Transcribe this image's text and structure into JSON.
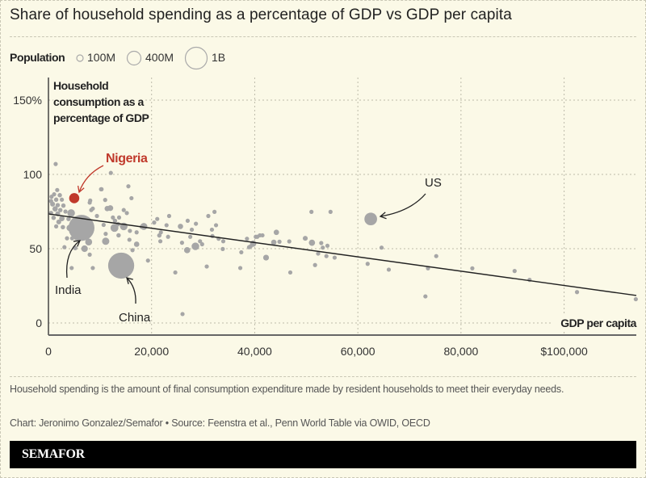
{
  "title": "Share of household spending as a percentage of GDP vs GDP per capita",
  "legend": {
    "label": "Population",
    "items": [
      {
        "label": "100M",
        "population_m": 100
      },
      {
        "label": "400M",
        "population_m": 400
      },
      {
        "label": "1B",
        "population_m": 1000
      }
    ]
  },
  "colors": {
    "background": "#fbf9e7",
    "point": "#a6a6a6",
    "highlight": "#c0392b",
    "text": "#222222",
    "trendline": "#222222"
  },
  "chart_data": {
    "type": "scatter",
    "title": "Share of household spending as a percentage of GDP vs GDP per capita",
    "xlabel": "GDP per capita",
    "ylabel": "Household consumption as a percentage of GDP",
    "xlim": [
      0,
      114000
    ],
    "ylim": [
      0,
      150
    ],
    "grid": true,
    "size_encoding": "population (millions)",
    "xticks": [
      {
        "value": 0,
        "label": "0"
      },
      {
        "value": 20000,
        "label": "20,000"
      },
      {
        "value": 40000,
        "label": "40,000"
      },
      {
        "value": 60000,
        "label": "60,000"
      },
      {
        "value": 80000,
        "label": "80,000"
      },
      {
        "value": 100000,
        "label": "$100,000"
      }
    ],
    "yticks": [
      {
        "value": 0,
        "label": "0"
      },
      {
        "value": 50,
        "label": "50"
      },
      {
        "value": 100,
        "label": "100"
      },
      {
        "value": 150,
        "label": "150%"
      }
    ],
    "point_fields": [
      "gdp_per_capita",
      "household_consumption_pct_gdp",
      "population_m"
    ],
    "points": [
      [
        1400,
        107,
        20
      ],
      [
        12100,
        101,
        20
      ],
      [
        10300,
        90,
        20
      ],
      [
        15500,
        92,
        20
      ],
      [
        16100,
        84,
        20
      ],
      [
        15000,
        151,
        20
      ],
      [
        1700,
        89.5,
        30
      ],
      [
        1100,
        86.6,
        30
      ],
      [
        2200,
        86,
        40
      ],
      [
        600,
        85,
        30
      ],
      [
        500,
        82,
        40
      ],
      [
        1500,
        83,
        40
      ],
      [
        2600,
        83,
        30
      ],
      [
        800,
        80,
        50
      ],
      [
        1800,
        79.3,
        40
      ],
      [
        2900,
        79,
        40
      ],
      [
        1300,
        76.8,
        60
      ],
      [
        2300,
        76,
        40
      ],
      [
        3300,
        75,
        30
      ],
      [
        500,
        74,
        40
      ],
      [
        1800,
        73.5,
        50
      ],
      [
        4400,
        74,
        120
      ],
      [
        8000,
        81,
        30
      ],
      [
        8300,
        76,
        30
      ],
      [
        1000,
        70.8,
        40
      ],
      [
        2600,
        70.3,
        60
      ],
      [
        3900,
        70,
        40
      ],
      [
        2000,
        68,
        50
      ],
      [
        1500,
        65,
        30
      ],
      [
        2800,
        64.5,
        40
      ],
      [
        4100,
        64,
        80
      ],
      [
        3600,
        57,
        30
      ],
      [
        4600,
        57,
        20
      ],
      [
        5400,
        57,
        20
      ],
      [
        7800,
        54.5,
        100
      ],
      [
        3100,
        51,
        30
      ],
      [
        5200,
        50.4,
        40
      ],
      [
        7000,
        50,
        90
      ],
      [
        4500,
        37,
        20
      ],
      [
        10200,
        90,
        20
      ],
      [
        11000,
        82.8,
        30
      ],
      [
        8100,
        82.4,
        30
      ],
      [
        11400,
        77,
        60
      ],
      [
        12000,
        77.3,
        70
      ],
      [
        8600,
        77,
        30
      ],
      [
        14600,
        76,
        25
      ],
      [
        15200,
        74,
        25
      ],
      [
        9400,
        72,
        30
      ],
      [
        12500,
        71,
        25
      ],
      [
        13700,
        71,
        30
      ],
      [
        12900,
        68.8,
        40
      ],
      [
        10700,
        66,
        30
      ],
      [
        12800,
        64,
        130
      ],
      [
        14600,
        65,
        120
      ],
      [
        13500,
        66.5,
        40
      ],
      [
        15800,
        62,
        30
      ],
      [
        17100,
        61,
        25
      ],
      [
        18500,
        65,
        100
      ],
      [
        18100,
        64.7,
        40
      ],
      [
        11100,
        60,
        30
      ],
      [
        11100,
        55,
        110
      ],
      [
        13600,
        59,
        40
      ],
      [
        15700,
        56,
        30
      ],
      [
        17100,
        53,
        60
      ],
      [
        16300,
        49,
        25
      ],
      [
        19300,
        42,
        20
      ],
      [
        8600,
        37,
        20
      ],
      [
        8000,
        46,
        30
      ],
      [
        20500,
        67.6,
        30
      ],
      [
        21100,
        70,
        25
      ],
      [
        21500,
        58.9,
        40
      ],
      [
        21700,
        55,
        30
      ],
      [
        21800,
        61,
        30
      ],
      [
        22900,
        65.8,
        30
      ],
      [
        23200,
        58,
        30
      ],
      [
        23400,
        72,
        25
      ],
      [
        24600,
        34,
        20
      ],
      [
        25600,
        65,
        60
      ],
      [
        25900,
        54,
        25
      ],
      [
        26900,
        49,
        80
      ],
      [
        27000,
        68.8,
        25
      ],
      [
        27500,
        58,
        30
      ],
      [
        27800,
        62.8,
        30
      ],
      [
        28500,
        51.6,
        120
      ],
      [
        28600,
        66.8,
        25
      ],
      [
        29400,
        55,
        30
      ],
      [
        29800,
        53,
        30
      ],
      [
        30700,
        38,
        20
      ],
      [
        31000,
        72,
        25
      ],
      [
        31700,
        62.8,
        30
      ],
      [
        31800,
        58.5,
        30
      ],
      [
        32200,
        74.8,
        25
      ],
      [
        32500,
        65.8,
        30
      ],
      [
        33000,
        56.7,
        25
      ],
      [
        33900,
        55,
        25
      ],
      [
        33800,
        49.8,
        25
      ],
      [
        26000,
        6,
        20
      ],
      [
        37200,
        37,
        20
      ],
      [
        37400,
        47.6,
        20
      ],
      [
        38500,
        56.7,
        25
      ],
      [
        38900,
        51,
        25
      ],
      [
        39700,
        53.4,
        80
      ],
      [
        40200,
        58,
        30
      ],
      [
        40500,
        58,
        30
      ],
      [
        41000,
        59,
        30
      ],
      [
        41500,
        59,
        25
      ],
      [
        39200,
        51.6,
        30
      ],
      [
        42200,
        44,
        70
      ],
      [
        43700,
        54.3,
        60
      ],
      [
        44200,
        61,
        60
      ],
      [
        44800,
        54.7,
        30
      ],
      [
        46700,
        54.9,
        30
      ],
      [
        46900,
        34,
        20
      ],
      [
        49800,
        57,
        50
      ],
      [
        51000,
        74.8,
        20
      ],
      [
        51100,
        54,
        80
      ],
      [
        51700,
        39,
        30
      ],
      [
        52300,
        46.7,
        25
      ],
      [
        52900,
        53.8,
        25
      ],
      [
        53200,
        50.7,
        25
      ],
      [
        53900,
        45,
        30
      ],
      [
        54100,
        52,
        30
      ],
      [
        54700,
        74.8,
        20
      ],
      [
        55500,
        44,
        30
      ],
      [
        61900,
        39.8,
        25
      ],
      [
        64600,
        50.7,
        25
      ],
      [
        66000,
        35.9,
        25
      ],
      [
        73100,
        17.9,
        20
      ],
      [
        73600,
        36.8,
        25
      ],
      [
        75200,
        45,
        25
      ],
      [
        82200,
        36.8,
        25
      ],
      [
        90400,
        35,
        20
      ],
      [
        93300,
        29,
        20
      ],
      [
        102500,
        20.8,
        25
      ],
      [
        113900,
        16,
        20
      ]
    ],
    "highlighted": [
      {
        "name": "Nigeria",
        "x": 5000,
        "y": 84,
        "population_m": 213,
        "color": "#c0392b"
      },
      {
        "name": "India",
        "x": 6400,
        "y": 64,
        "population_m": 1400,
        "color": "#a6a6a6"
      },
      {
        "name": "China",
        "x": 14100,
        "y": 38.6,
        "population_m": 1410,
        "color": "#a6a6a6"
      },
      {
        "name": "US",
        "x": 62500,
        "y": 70,
        "population_m": 332,
        "color": "#a6a6a6"
      }
    ],
    "annotations": [
      {
        "label": "Nigeria",
        "target": "Nigeria"
      },
      {
        "label": "India",
        "target": "India"
      },
      {
        "label": "China",
        "target": "China"
      },
      {
        "label": "US",
        "target": "US"
      }
    ],
    "trendline": {
      "x": [
        0,
        114000
      ],
      "y": [
        73.4,
        18.5
      ]
    }
  },
  "footer": {
    "note": "Household spending is the amount of final consumption expenditure made by resident households to meet their everyday needs.",
    "credit": "Chart: Jeronimo Gonzalez/Semafor • Source: Feenstra et al., Penn World Table via OWID, OECD",
    "brand": "SEMAFOR"
  }
}
